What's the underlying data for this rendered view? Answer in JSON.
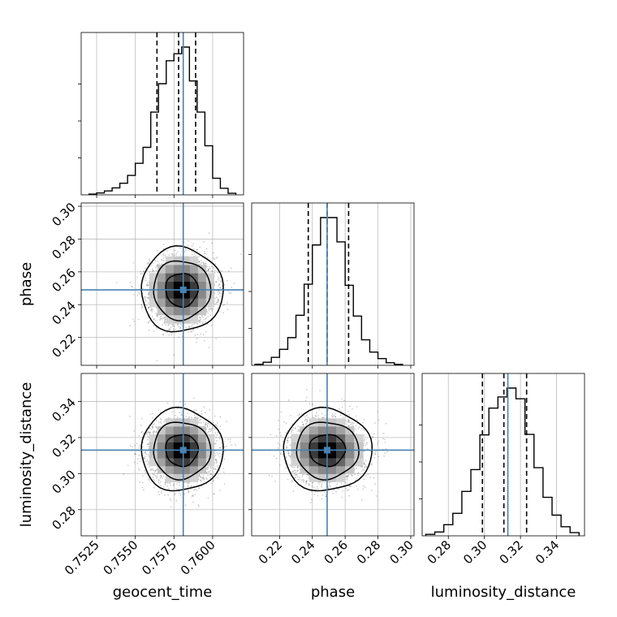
{
  "chart_data": {
    "type": "corner",
    "parameters": [
      "geocent_time",
      "phase",
      "luminosity_distance"
    ],
    "labels": {
      "geocent_time": "geocent_time",
      "phase": "phase",
      "luminosity_distance": "luminosity_distance"
    },
    "ranges": {
      "geocent_time": [
        0.7515,
        0.762
      ],
      "phase": [
        0.203,
        0.302
      ],
      "luminosity_distance": [
        0.2655,
        0.3555
      ]
    },
    "ticks": {
      "geocent_time": [
        0.7525,
        0.755,
        0.7575,
        0.76
      ],
      "phase": [
        0.22,
        0.24,
        0.26,
        0.28,
        0.3
      ],
      "luminosity_distance": [
        0.28,
        0.3,
        0.32,
        0.34
      ]
    },
    "tick_labels": {
      "geocent_time": [
        "0.7525",
        "0.7550",
        "0.7575",
        "0.7600"
      ],
      "phase": [
        "0.22",
        "0.24",
        "0.26",
        "0.28",
        "0.30"
      ],
      "luminosity_distance": [
        "0.28",
        "0.30",
        "0.32",
        "0.34"
      ]
    },
    "truths": {
      "geocent_time": 0.7581,
      "phase": 0.249,
      "luminosity_distance": 0.313
    },
    "quantiles": {
      "geocent_time": [
        0.7564,
        0.7578,
        0.7589
      ],
      "phase": [
        0.2375,
        0.249,
        0.2621
      ],
      "luminosity_distance": [
        0.2989,
        0.3108,
        0.3234
      ]
    },
    "histograms": {
      "geocent_time": {
        "edges": [
          0.752,
          0.7525,
          0.753,
          0.7535,
          0.754,
          0.7545,
          0.755,
          0.7555,
          0.756,
          0.7565,
          0.757,
          0.7575,
          0.758,
          0.7585,
          0.759,
          0.7595,
          0.76,
          0.7605,
          0.761,
          0.7615
        ],
        "counts": [
          0.005,
          0.012,
          0.025,
          0.045,
          0.075,
          0.125,
          0.203,
          0.306,
          0.533,
          0.716,
          0.864,
          0.909,
          0.952,
          0.734,
          0.533,
          0.316,
          0.107,
          0.042,
          0.01
        ]
      },
      "phase": {
        "edges": [
          0.205,
          0.21,
          0.215,
          0.22,
          0.225,
          0.23,
          0.235,
          0.24,
          0.245,
          0.25,
          0.255,
          0.26,
          0.265,
          0.27,
          0.275,
          0.28,
          0.285,
          0.29,
          0.295
        ],
        "counts": [
          0.007,
          0.02,
          0.052,
          0.104,
          0.18,
          0.325,
          0.527,
          0.782,
          0.96,
          0.96,
          0.802,
          0.52,
          0.32,
          0.166,
          0.086,
          0.044,
          0.017,
          0.006
        ]
      },
      "luminosity_distance": {
        "edges": [
          0.2675,
          0.2725,
          0.2775,
          0.2825,
          0.2875,
          0.2925,
          0.2975,
          0.3025,
          0.3075,
          0.3125,
          0.3175,
          0.3225,
          0.3275,
          0.3325,
          0.3375,
          0.3425,
          0.3475,
          0.3525
        ],
        "counts": [
          0.009,
          0.024,
          0.07,
          0.141,
          0.279,
          0.416,
          0.634,
          0.802,
          0.872,
          0.928,
          0.861,
          0.637,
          0.428,
          0.242,
          0.13,
          0.057,
          0.02
        ]
      }
    },
    "contours": {
      "phase_vs_geocent_time": {
        "x": "geocent_time",
        "y": "phase",
        "center": [
          0.758,
          0.249
        ],
        "sigma_levels": [
          {
            "rx": 0.00105,
            "ry": 0.0102
          },
          {
            "rx": 0.00185,
            "ry": 0.018
          },
          {
            "rx": 0.00265,
            "ry": 0.0258
          }
        ]
      },
      "luminosity_distance_vs_geocent_time": {
        "x": "geocent_time",
        "y": "luminosity_distance",
        "center": [
          0.758,
          0.313
        ],
        "sigma_levels": [
          {
            "rx": 0.00105,
            "ry": 0.0088
          },
          {
            "rx": 0.00185,
            "ry": 0.0158
          },
          {
            "rx": 0.00265,
            "ry": 0.0228
          }
        ]
      },
      "luminosity_distance_vs_phase": {
        "x": "phase",
        "y": "luminosity_distance",
        "center": [
          0.249,
          0.313
        ],
        "sigma_levels": [
          {
            "rx": 0.011,
            "ry": 0.0088
          },
          {
            "rx": 0.019,
            "ry": 0.0158
          },
          {
            "rx": 0.027,
            "ry": 0.0228
          }
        ]
      }
    },
    "colors": {
      "truth": "#4682b4",
      "hist": "#000000",
      "contour": "#000000",
      "grid": "#bdbdbd",
      "points": "#555555"
    },
    "grid": true
  }
}
